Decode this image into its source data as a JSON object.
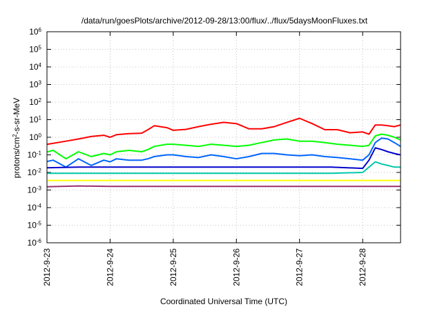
{
  "chart_data": {
    "type": "line",
    "title": "/data/run/goesPlots/archive/2012-09-28/13:00/flux/../flux/5daysMoonFluxes.txt",
    "xlabel": "Coordinated Universal Time (UTC)",
    "ylabel": {
      "prefix": "protons/cm",
      "sup": "2",
      "suffix": "-s-sr-MeV"
    },
    "yscale": "log",
    "ylim": [
      1e-06,
      1000000.0
    ],
    "xlim": [
      0,
      5.6
    ],
    "grid": true,
    "x_ticks": [
      {
        "x": 0,
        "label": "2012-9-23"
      },
      {
        "x": 1,
        "label": "2012-9-24"
      },
      {
        "x": 2,
        "label": "2012-9-25"
      },
      {
        "x": 3,
        "label": "2012-9-26"
      },
      {
        "x": 4,
        "label": "2012-9-27"
      },
      {
        "x": 5,
        "label": "2012-9-28"
      }
    ],
    "y_ticks": [
      {
        "exp": -6,
        "label": "10",
        "sup": "-6"
      },
      {
        "exp": -5,
        "label": "10",
        "sup": "-5"
      },
      {
        "exp": -4,
        "label": "10",
        "sup": "-4"
      },
      {
        "exp": -3,
        "label": "10",
        "sup": "-3"
      },
      {
        "exp": -2,
        "label": "10",
        "sup": "-2"
      },
      {
        "exp": -1,
        "label": "10",
        "sup": "-1"
      },
      {
        "exp": 0,
        "label": "10",
        "sup": "0"
      },
      {
        "exp": 1,
        "label": "10",
        "sup": "1"
      },
      {
        "exp": 2,
        "label": "10",
        "sup": "2"
      },
      {
        "exp": 3,
        "label": "10",
        "sup": "3"
      },
      {
        "exp": 4,
        "label": "10",
        "sup": "4"
      },
      {
        "exp": 5,
        "label": "10",
        "sup": "5"
      },
      {
        "exp": 6,
        "label": "10",
        "sup": "6"
      }
    ],
    "series": [
      {
        "color": "#ff0000",
        "x": [
          -0.1,
          0.1,
          0.3,
          0.5,
          0.7,
          0.9,
          1.0,
          1.1,
          1.3,
          1.5,
          1.6,
          1.7,
          1.9,
          2.0,
          2.2,
          2.4,
          2.6,
          2.8,
          3.0,
          3.2,
          3.4,
          3.6,
          3.8,
          4.0,
          4.2,
          4.4,
          4.6,
          4.8,
          5.0,
          5.1,
          5.2,
          5.3,
          5.4,
          5.5,
          5.6
        ],
        "y": [
          0.35,
          0.45,
          0.6,
          0.8,
          1.1,
          1.3,
          1.0,
          1.4,
          1.6,
          1.7,
          2.7,
          4.5,
          3.5,
          2.5,
          2.8,
          4.0,
          5.5,
          7.0,
          6.0,
          3.0,
          3.0,
          4.0,
          7.0,
          12.0,
          6.0,
          2.7,
          2.7,
          1.8,
          2.0,
          1.5,
          5.0,
          5.0,
          4.5,
          4.0,
          5.0
        ]
      },
      {
        "color": "#00ff00",
        "x": [
          -0.1,
          0.1,
          0.3,
          0.5,
          0.7,
          0.9,
          1.0,
          1.1,
          1.3,
          1.5,
          1.6,
          1.7,
          1.9,
          2.0,
          2.2,
          2.4,
          2.6,
          2.8,
          3.0,
          3.2,
          3.4,
          3.6,
          3.8,
          4.0,
          4.2,
          4.4,
          4.6,
          4.8,
          5.0,
          5.1,
          5.2,
          5.3,
          5.4,
          5.5,
          5.6
        ],
        "y": [
          0.12,
          0.18,
          0.06,
          0.15,
          0.08,
          0.12,
          0.1,
          0.15,
          0.18,
          0.15,
          0.2,
          0.3,
          0.4,
          0.4,
          0.35,
          0.3,
          0.4,
          0.35,
          0.3,
          0.35,
          0.5,
          0.7,
          0.8,
          0.6,
          0.6,
          0.5,
          0.4,
          0.35,
          0.3,
          0.35,
          1.2,
          1.5,
          1.3,
          1.0,
          0.7
        ]
      },
      {
        "color": "#0064ff",
        "x": [
          -0.1,
          0.1,
          0.3,
          0.5,
          0.7,
          0.9,
          1.0,
          1.1,
          1.3,
          1.5,
          1.6,
          1.7,
          1.9,
          2.0,
          2.2,
          2.4,
          2.6,
          2.8,
          3.0,
          3.2,
          3.4,
          3.6,
          3.8,
          4.0,
          4.2,
          4.4,
          4.6,
          4.8,
          5.0,
          5.1,
          5.2,
          5.3,
          5.4,
          5.5,
          5.6
        ],
        "y": [
          0.035,
          0.05,
          0.02,
          0.06,
          0.025,
          0.05,
          0.04,
          0.06,
          0.05,
          0.05,
          0.06,
          0.08,
          0.1,
          0.1,
          0.08,
          0.07,
          0.1,
          0.08,
          0.06,
          0.08,
          0.12,
          0.12,
          0.1,
          0.09,
          0.1,
          0.08,
          0.07,
          0.06,
          0.05,
          0.1,
          0.5,
          0.9,
          0.8,
          0.5,
          0.3
        ]
      },
      {
        "color": "#0000cc",
        "x": [
          -0.1,
          0.5,
          1.0,
          1.5,
          2.0,
          2.5,
          3.0,
          3.5,
          4.0,
          4.5,
          5.0,
          5.1,
          5.2,
          5.3,
          5.4,
          5.5,
          5.6
        ],
        "y": [
          0.018,
          0.02,
          0.02,
          0.02,
          0.02,
          0.02,
          0.02,
          0.02,
          0.02,
          0.02,
          0.017,
          0.05,
          0.25,
          0.2,
          0.15,
          0.12,
          0.1
        ]
      },
      {
        "color": "#00c8aa",
        "x": [
          -0.1,
          0.5,
          1.0,
          1.5,
          2.0,
          2.5,
          3.0,
          3.5,
          4.0,
          4.5,
          5.0,
          5.1,
          5.2,
          5.3,
          5.4,
          5.5,
          5.6
        ],
        "y": [
          0.009,
          0.009,
          0.009,
          0.009,
          0.009,
          0.009,
          0.009,
          0.009,
          0.009,
          0.009,
          0.01,
          0.02,
          0.04,
          0.03,
          0.025,
          0.02,
          0.02
        ]
      },
      {
        "color": "#ffff00",
        "x": [
          -0.1,
          0.5,
          1.0,
          1.5,
          2.0,
          2.5,
          3.0,
          3.5,
          4.0,
          4.5,
          5.0,
          5.5,
          5.6
        ],
        "y": [
          0.0035,
          0.0035,
          0.0035,
          0.0035,
          0.0035,
          0.0035,
          0.0035,
          0.0035,
          0.0035,
          0.0035,
          0.0035,
          0.0035,
          0.0035
        ]
      },
      {
        "color": "#9b2f6e",
        "x": [
          -0.1,
          0.5,
          1.0,
          1.5,
          2.0,
          2.5,
          3.0,
          3.5,
          4.0,
          4.5,
          5.0,
          5.5,
          5.6
        ],
        "y": [
          0.0015,
          0.0017,
          0.0016,
          0.0016,
          0.0016,
          0.0016,
          0.0016,
          0.0016,
          0.0016,
          0.0016,
          0.0016,
          0.0016,
          0.0016
        ]
      }
    ]
  }
}
